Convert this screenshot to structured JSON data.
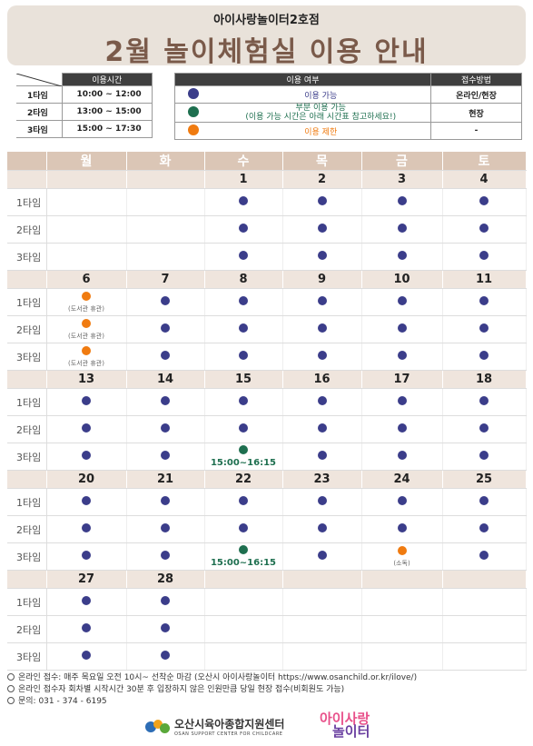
{
  "header": {
    "subtitle": "아이사랑놀이터2호점",
    "title": "2월 놀이체험실 이용 안내"
  },
  "time_table": {
    "header": "이용시간",
    "rows": [
      {
        "label": "1타임",
        "time": "10:00 ~ 12:00"
      },
      {
        "label": "2타임",
        "time": "13:00 ~ 15:00"
      },
      {
        "label": "3타임",
        "time": "15:00 ~ 17:30"
      }
    ]
  },
  "legend": {
    "header_status": "이용 여부",
    "header_method": "접수방법",
    "rows": [
      {
        "status": "avail",
        "text": "이용 가능",
        "text2": "",
        "method": "온라인/현장"
      },
      {
        "status": "part",
        "text": "부분 이용 가능",
        "text2": "(이용 가능 시간은 아래 시간표 참고하세요!)",
        "method": "현장"
      },
      {
        "status": "limit",
        "text": "이용 제한",
        "text2": "",
        "method": "-"
      }
    ]
  },
  "colors": {
    "avail": "#3b3d8a",
    "part": "#1e6f4f",
    "limit": "#f07b10",
    "header_bg": "#e9e2da",
    "title": "#7a5a4a",
    "day_header": "#dbc6b6",
    "date_row": "#efe5dd"
  },
  "calendar": {
    "weekdays": [
      "월",
      "화",
      "수",
      "목",
      "금",
      "토"
    ],
    "slot_labels": [
      "1타임",
      "2타임",
      "3타임"
    ],
    "weeks": [
      {
        "dates": [
          "",
          "",
          "1",
          "2",
          "3",
          "4"
        ],
        "slots": [
          [
            null,
            null,
            {
              "s": "avail"
            },
            {
              "s": "avail"
            },
            {
              "s": "avail"
            },
            {
              "s": "avail"
            }
          ],
          [
            null,
            null,
            {
              "s": "avail"
            },
            {
              "s": "avail"
            },
            {
              "s": "avail"
            },
            {
              "s": "avail"
            }
          ],
          [
            null,
            null,
            {
              "s": "avail"
            },
            {
              "s": "avail"
            },
            {
              "s": "avail"
            },
            {
              "s": "avail"
            }
          ]
        ]
      },
      {
        "dates": [
          "6",
          "7",
          "8",
          "9",
          "10",
          "11"
        ],
        "slots": [
          [
            {
              "s": "limit",
              "note": "(도서관 휴관)"
            },
            {
              "s": "avail"
            },
            {
              "s": "avail"
            },
            {
              "s": "avail"
            },
            {
              "s": "avail"
            },
            {
              "s": "avail"
            }
          ],
          [
            {
              "s": "limit",
              "note": "(도서관 휴관)"
            },
            {
              "s": "avail"
            },
            {
              "s": "avail"
            },
            {
              "s": "avail"
            },
            {
              "s": "avail"
            },
            {
              "s": "avail"
            }
          ],
          [
            {
              "s": "limit",
              "note": "(도서관 휴관)"
            },
            {
              "s": "avail"
            },
            {
              "s": "avail"
            },
            {
              "s": "avail"
            },
            {
              "s": "avail"
            },
            {
              "s": "avail"
            }
          ]
        ]
      },
      {
        "dates": [
          "13",
          "14",
          "15",
          "16",
          "17",
          "18"
        ],
        "slots": [
          [
            {
              "s": "avail"
            },
            {
              "s": "avail"
            },
            {
              "s": "avail"
            },
            {
              "s": "avail"
            },
            {
              "s": "avail"
            },
            {
              "s": "avail"
            }
          ],
          [
            {
              "s": "avail"
            },
            {
              "s": "avail"
            },
            {
              "s": "avail"
            },
            {
              "s": "avail"
            },
            {
              "s": "avail"
            },
            {
              "s": "avail"
            }
          ],
          [
            {
              "s": "avail"
            },
            {
              "s": "avail"
            },
            {
              "s": "part",
              "time": "15:00~16:15"
            },
            {
              "s": "avail"
            },
            {
              "s": "avail"
            },
            {
              "s": "avail"
            }
          ]
        ]
      },
      {
        "dates": [
          "20",
          "21",
          "22",
          "23",
          "24",
          "25"
        ],
        "slots": [
          [
            {
              "s": "avail"
            },
            {
              "s": "avail"
            },
            {
              "s": "avail"
            },
            {
              "s": "avail"
            },
            {
              "s": "avail"
            },
            {
              "s": "avail"
            }
          ],
          [
            {
              "s": "avail"
            },
            {
              "s": "avail"
            },
            {
              "s": "avail"
            },
            {
              "s": "avail"
            },
            {
              "s": "avail"
            },
            {
              "s": "avail"
            }
          ],
          [
            {
              "s": "avail"
            },
            {
              "s": "avail"
            },
            {
              "s": "part",
              "time": "15:00~16:15"
            },
            {
              "s": "avail"
            },
            {
              "s": "limit",
              "note": "(소독)"
            },
            {
              "s": "avail"
            }
          ]
        ]
      },
      {
        "dates": [
          "27",
          "28",
          "",
          "",
          "",
          ""
        ],
        "slots": [
          [
            {
              "s": "avail"
            },
            {
              "s": "avail"
            },
            null,
            null,
            null,
            null
          ],
          [
            {
              "s": "avail"
            },
            {
              "s": "avail"
            },
            null,
            null,
            null,
            null
          ],
          [
            {
              "s": "avail"
            },
            {
              "s": "avail"
            },
            null,
            null,
            null,
            null
          ]
        ]
      }
    ]
  },
  "footer": {
    "lines": [
      "온라인 접수: 매주 목요일 오전 10시~ 선착순 마감 (오산시 아이사랑놀이터 https://www.osanchild.or.kr/ilove/)",
      "온라인 접수자 회차별 시작시간 30분 후 입장하지 않은 인원만큼 당일 현장 접수(비회원도 가능)",
      "문의: 031 - 374 - 6195"
    ]
  },
  "logos": {
    "center_name": "오산시육아종합지원센터",
    "center_sub": "OSAN SUPPORT CENTER FOR CHILDCARE",
    "play_logo_line1": "아이사랑",
    "play_logo_line2": "놀이터"
  }
}
